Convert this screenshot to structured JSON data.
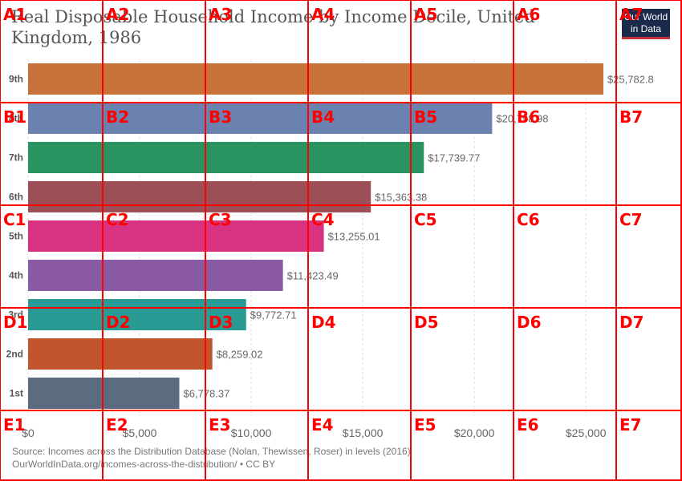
{
  "logo": {
    "line1": "Our World",
    "line2": "in Data"
  },
  "source": {
    "line1": "Source: Incomes across the Distribution Database (Nolan, Thewissen, Roser) in levels (2016)",
    "line2": "OurWorldInData.org/incomes-across-the-distribution/ • CC BY"
  },
  "grid": {
    "rows": [
      "A",
      "B",
      "C",
      "D",
      "E"
    ],
    "cols": [
      "1",
      "2",
      "3",
      "4",
      "5",
      "6",
      "7"
    ]
  },
  "chart_data": {
    "type": "bar",
    "orientation": "horizontal",
    "title": "Real Disposable Household Income by Income Decile, United Kingdom, 1986",
    "categories": [
      "9th",
      "8th",
      "7th",
      "6th",
      "5th",
      "4th",
      "3rd",
      "2nd",
      "1st"
    ],
    "values": [
      25782.8,
      20798.98,
      17739.77,
      15363.38,
      13255.01,
      11423.49,
      9772.71,
      8259.02,
      6778.37
    ],
    "value_labels": [
      "$25,782.8",
      "$20,798.98",
      "$17,739.77",
      "$15,363.38",
      "$13,255.01",
      "$11,423.49",
      "$9,772.71",
      "$8,259.02",
      "$6,778.37"
    ],
    "colors": [
      "#c8713a",
      "#6b82b0",
      "#2b9561",
      "#9c4f57",
      "#d93280",
      "#8a5aa5",
      "#2a9a95",
      "#c0552e",
      "#5b6b80"
    ],
    "xlim": [
      0,
      26000
    ],
    "xticks": [
      0,
      5000,
      10000,
      15000,
      20000,
      25000
    ],
    "xtick_labels": [
      "$0",
      "$5,000",
      "$10,000",
      "$15,000",
      "$20,000",
      "$25,000"
    ],
    "grid": "vertical dashed"
  }
}
